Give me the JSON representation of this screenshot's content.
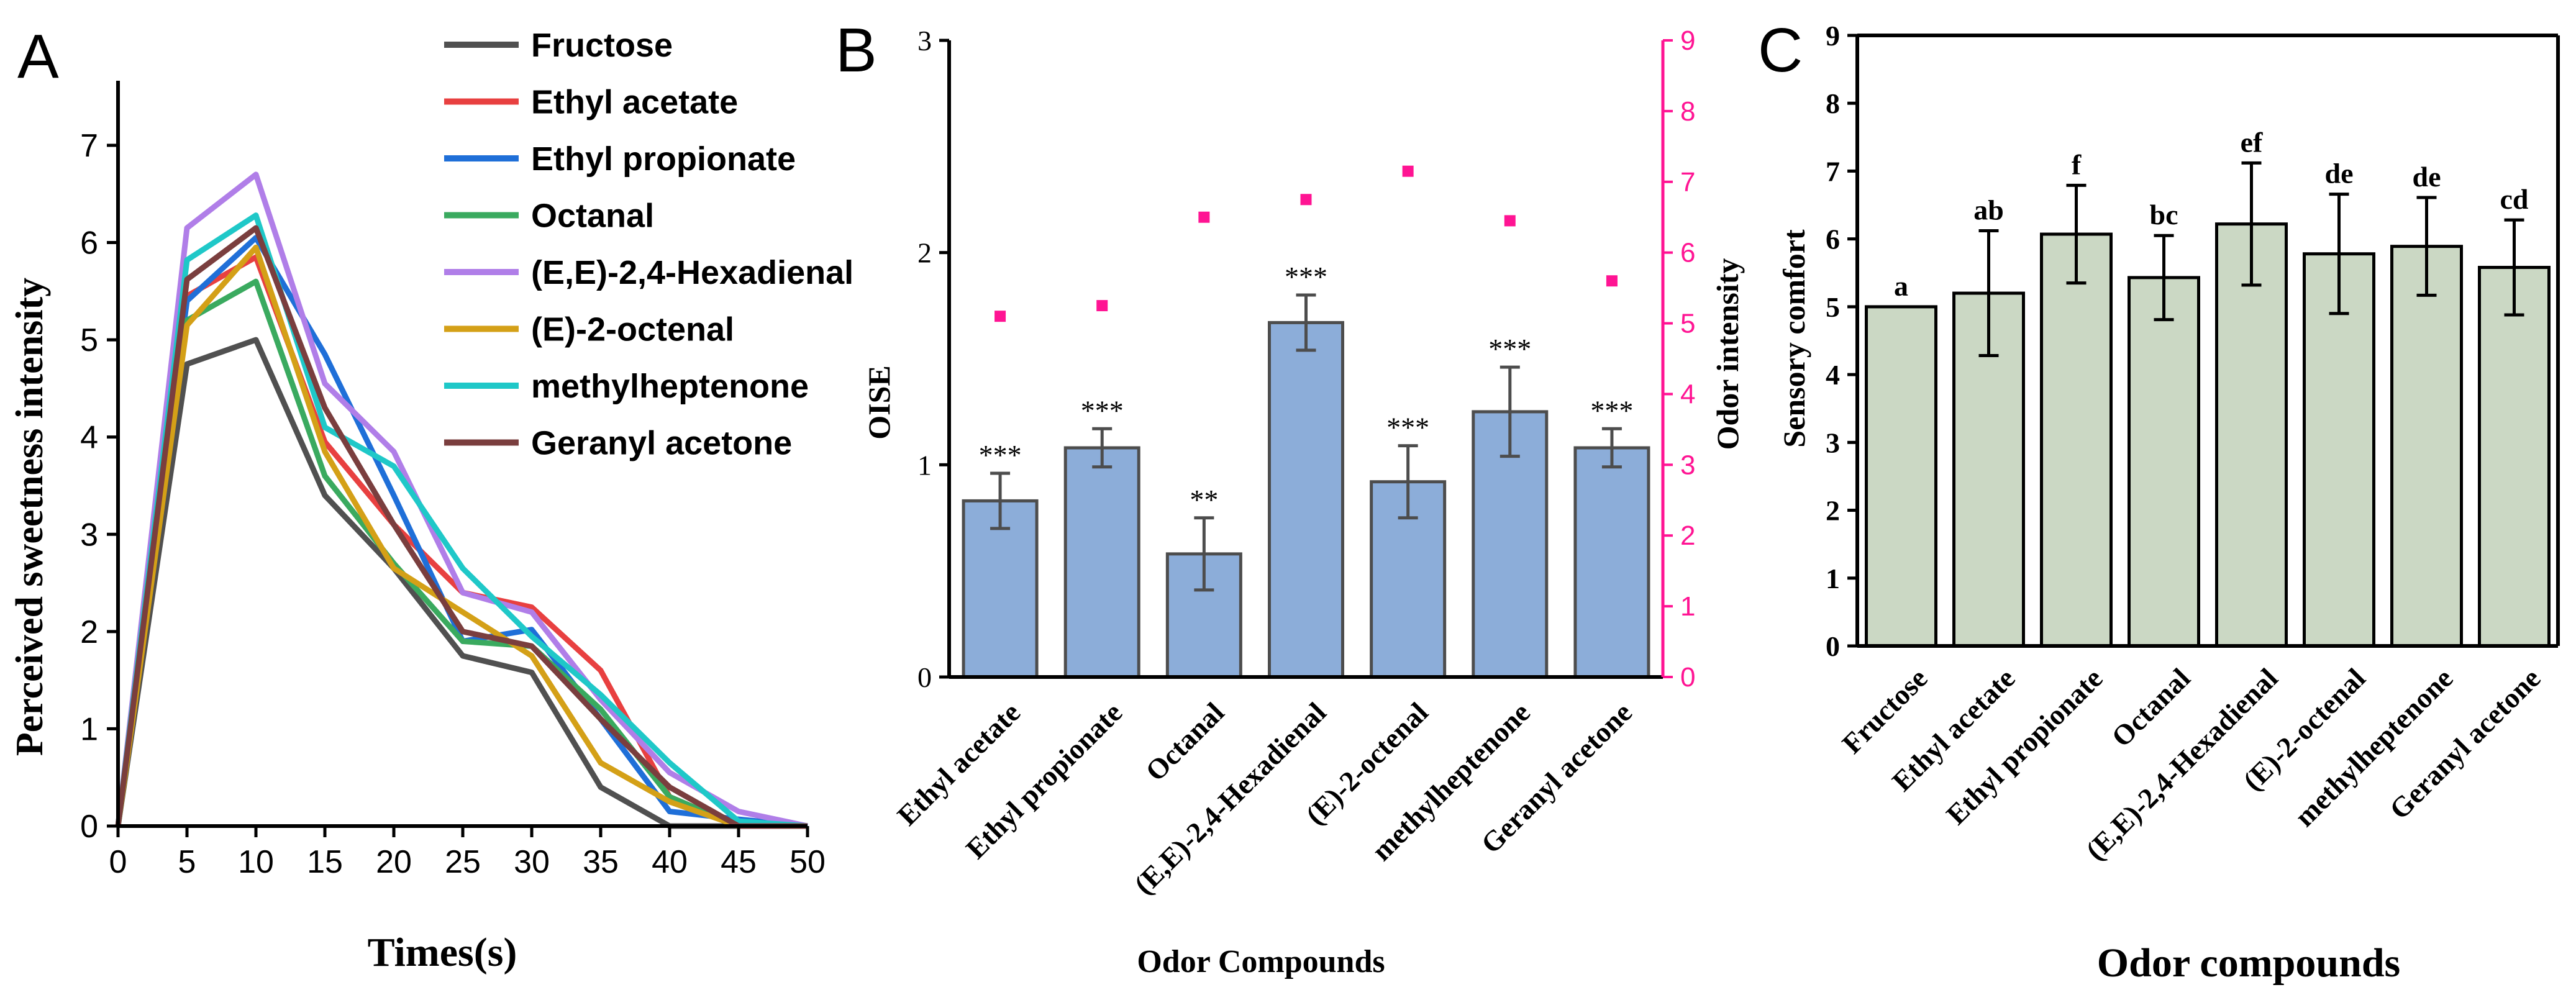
{
  "chart_data": [
    {
      "panel": "A",
      "type": "line",
      "xlabel": "Times(s)",
      "ylabel": "Perceived sweetness intensity",
      "xlim": [
        0,
        50
      ],
      "ylim": [
        0,
        7.6
      ],
      "x_ticks": [
        "0",
        "5",
        "10",
        "15",
        "20",
        "25",
        "30",
        "35",
        "40",
        "45",
        "50"
      ],
      "y_ticks": [
        "0",
        "1",
        "2",
        "3",
        "4",
        "5",
        "6",
        "7"
      ],
      "legend_position": "top-right",
      "x": [
        0,
        5,
        10,
        15,
        20,
        25,
        30,
        35,
        40,
        45,
        50
      ],
      "series": [
        {
          "name": "Fructose",
          "color": "#505050",
          "values": [
            0,
            4.75,
            5.0,
            3.4,
            2.65,
            1.75,
            1.58,
            0.4,
            0,
            0,
            0
          ]
        },
        {
          "name": "Ethyl acetate",
          "color": "#e84040",
          "values": [
            0,
            5.45,
            5.85,
            3.95,
            3.1,
            2.4,
            2.25,
            1.6,
            0.3,
            0,
            0
          ]
        },
        {
          "name": "Ethyl propionate",
          "color": "#1f6fd8",
          "values": [
            0,
            5.4,
            6.05,
            4.85,
            3.4,
            1.9,
            2.02,
            1.1,
            0.15,
            0.07,
            0
          ]
        },
        {
          "name": "Octanal",
          "color": "#3aaa5f",
          "values": [
            0,
            5.2,
            5.6,
            3.6,
            2.7,
            1.9,
            1.85,
            1.2,
            0.3,
            0,
            0
          ]
        },
        {
          "name": "(E,E)-2,4-Hexadienal",
          "color": "#b07ee8",
          "values": [
            0,
            6.15,
            6.7,
            4.55,
            3.85,
            2.4,
            2.2,
            1.3,
            0.55,
            0.15,
            0
          ]
        },
        {
          "name": "(E)-2-octenal",
          "color": "#d4a017",
          "values": [
            0,
            5.15,
            5.95,
            3.85,
            2.65,
            2.2,
            1.75,
            0.65,
            0.25,
            0,
            0
          ]
        },
        {
          "name": "methylheptenone",
          "color": "#1fc8c8",
          "values": [
            0,
            5.82,
            6.28,
            4.1,
            3.7,
            2.65,
            1.95,
            1.35,
            0.65,
            0.05,
            0
          ]
        },
        {
          "name": "Geranyl acetone",
          "color": "#7a3e3e",
          "values": [
            0,
            5.62,
            6.15,
            4.3,
            3.1,
            2.0,
            1.85,
            1.1,
            0.4,
            0,
            0
          ]
        }
      ]
    },
    {
      "panel": "B",
      "type": "bar",
      "xlabel": "Odor Compounds",
      "ylabel": "OISE",
      "ylabel_right": "Odor intensity",
      "ylim": [
        0,
        3
      ],
      "ylim_right": [
        0,
        9
      ],
      "y_ticks": [
        "0",
        "1",
        "2",
        "3"
      ],
      "y_ticks_right": [
        "0",
        "1",
        "2",
        "3",
        "4",
        "5",
        "6",
        "7",
        "8",
        "9"
      ],
      "categories": [
        "Ethyl acetate",
        "Ethyl propionate",
        "Octanal",
        "(E,E)-2,4-Hexadienal",
        "(E)-2-octenal",
        "methylheptenone",
        "Geranyl acetone"
      ],
      "values": [
        0.83,
        1.08,
        0.58,
        1.67,
        0.92,
        1.25,
        1.08
      ],
      "errors": [
        0.13,
        0.09,
        0.17,
        0.13,
        0.17,
        0.21,
        0.09
      ],
      "significance": [
        "***",
        "***",
        "**",
        "***",
        "***",
        "***",
        "***"
      ],
      "odor_intensity": [
        5.1,
        5.25,
        6.5,
        6.75,
        7.15,
        6.45,
        5.6
      ]
    },
    {
      "panel": "C",
      "type": "bar",
      "xlabel": "Odor compounds",
      "ylabel": "Sensory comfort",
      "ylim": [
        0,
        9
      ],
      "y_ticks": [
        "0",
        "1",
        "2",
        "3",
        "4",
        "5",
        "6",
        "7",
        "8",
        "9"
      ],
      "categories": [
        "Fructose",
        "Ethyl acetate",
        "Ethyl propionate",
        "Octanal",
        "(E,E)-2,4-Hexadienal",
        "(E)-2-octenal",
        "methylheptenone",
        "Geranyl acetone"
      ],
      "values": [
        5.0,
        5.2,
        6.07,
        5.43,
        6.22,
        5.78,
        5.89,
        5.58
      ],
      "errors": [
        0,
        0.92,
        0.72,
        0.62,
        0.9,
        0.88,
        0.72,
        0.7
      ],
      "letters": [
        "a",
        "ab",
        "f",
        "bc",
        "ef",
        "de",
        "de",
        "cd"
      ]
    }
  ],
  "colors": {
    "bar_blue": "#8cadd9",
    "bar_green": "#cbd8c4",
    "pink": "#ff1493"
  }
}
